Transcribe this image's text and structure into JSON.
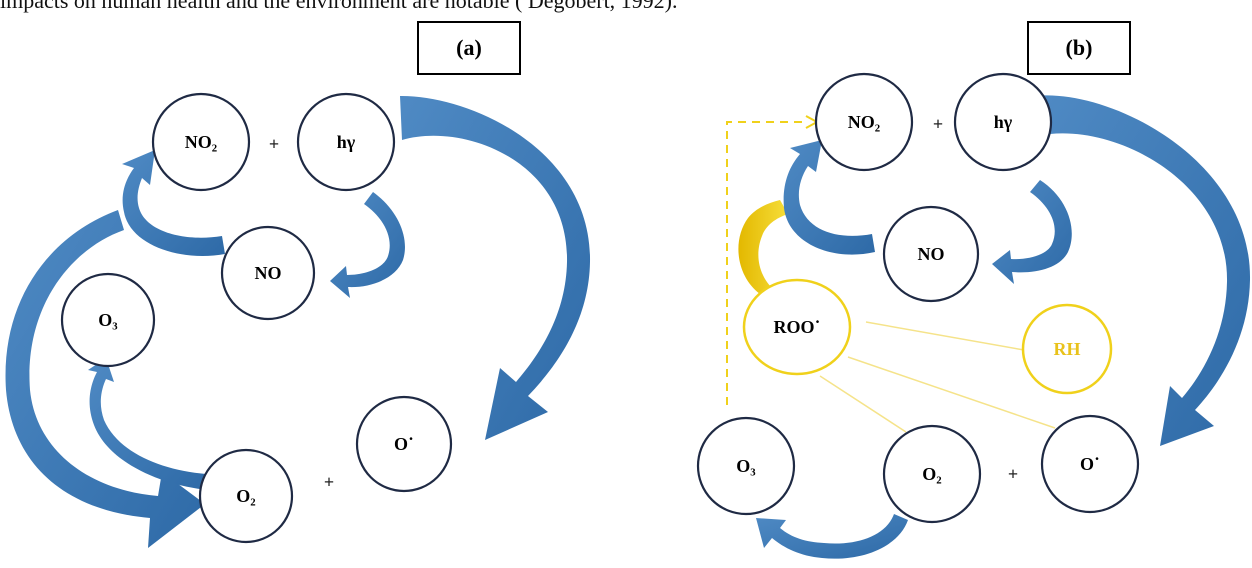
{
  "header_text": "impacts on human health and the environment are notable ( Degobert, 1992).",
  "panels": [
    {
      "label": "(a)",
      "nodes": {
        "no2": "NO₂",
        "hv": "hγ",
        "no": "NO",
        "o3": "O₃",
        "o2": "O₂",
        "oradical": "O˙"
      },
      "operators": [
        "+",
        "+"
      ]
    },
    {
      "label": "(b)",
      "nodes": {
        "no2": "NO₂",
        "hv": "hγ",
        "no": "NO",
        "roo": "ROO˙",
        "rh": "RH",
        "o3": "O₃",
        "o2": "O₂",
        "oradical": "O˙"
      },
      "operators": [
        "+",
        "+"
      ]
    }
  ],
  "colors": {
    "circle_stroke": "#1f2a44",
    "arrow_blue": "#2e6aa7",
    "arrow_blue_light": "#4f8ac4",
    "yellow": "#f0d11b",
    "yellow_text": "#e9c21a"
  }
}
